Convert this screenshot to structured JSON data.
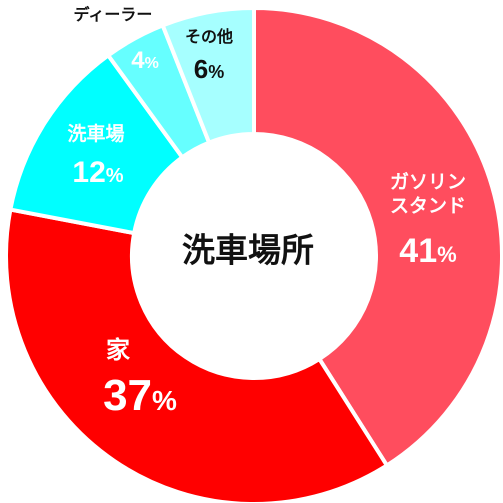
{
  "chart_data": {
    "type": "pie",
    "title": "洗車場所",
    "unit": "%",
    "slices": [
      {
        "label": "ガソリンスタンド",
        "value": 41,
        "value_label": "41%",
        "color": "#FF4D5E"
      },
      {
        "label": "家",
        "value": 37,
        "value_label": "37%",
        "color": "#FF0000"
      },
      {
        "label": "洗車場",
        "value": 12,
        "value_label": "12%",
        "color": "#00FFFF"
      },
      {
        "label": "ディーラー",
        "value": 4,
        "value_label": "4%",
        "color": "#66FFFF"
      },
      {
        "label": "その他",
        "value": 6,
        "value_label": "6%",
        "color": "#A6FFFF"
      }
    ]
  }
}
